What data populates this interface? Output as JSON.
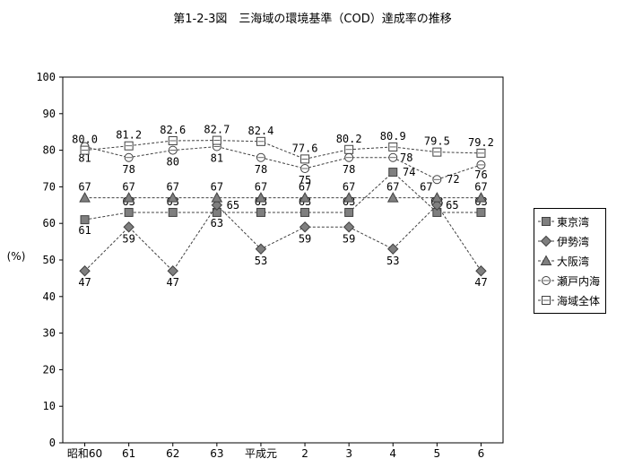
{
  "figure_title": "第1-2-3図　三海域の環境基準（COD）達成率の推移",
  "chart_data": {
    "type": "line",
    "title": "第1-2-3図　三海域の環境基準（COD）達成率の推移",
    "xlabel": "",
    "ylabel": "(%)",
    "ylim": [
      0,
      100
    ],
    "yticks": [
      0,
      10,
      20,
      30,
      40,
      50,
      60,
      70,
      80,
      90,
      100
    ],
    "categories": [
      "昭和60",
      "61",
      "62",
      "63",
      "平成元",
      "2",
      "3",
      "4",
      "5",
      "6"
    ],
    "grid": false,
    "legend_position": "right",
    "series": [
      {
        "name": "東京湾",
        "marker": "filled-square",
        "values": [
          61,
          63,
          63,
          63,
          63,
          63,
          63,
          74,
          63,
          63
        ],
        "labels": [
          "61",
          "63",
          "63",
          "63",
          "63",
          "63",
          "63",
          "74",
          "63",
          "63"
        ]
      },
      {
        "name": "伊勢湾",
        "marker": "filled-diamond",
        "values": [
          47,
          59,
          47,
          65,
          53,
          59,
          59,
          53,
          65,
          47
        ],
        "labels": [
          "47",
          "59",
          "47",
          "65",
          "53",
          "59",
          "59",
          "53",
          "65",
          "47"
        ]
      },
      {
        "name": "大阪湾",
        "marker": "filled-triangle",
        "values": [
          67,
          67,
          67,
          67,
          67,
          67,
          67,
          67,
          67,
          67
        ],
        "labels": [
          "67",
          "67",
          "67",
          "67",
          "67",
          "67",
          "67",
          "67",
          "67",
          "67"
        ]
      },
      {
        "name": "瀬戸内海",
        "marker": "open-circle",
        "values": [
          81,
          78,
          80,
          81,
          78,
          75,
          78,
          78,
          72,
          76
        ],
        "labels": [
          "81",
          "78",
          "80",
          "81",
          "78",
          "75",
          "78",
          "78",
          "72",
          "76"
        ]
      },
      {
        "name": "海域全体",
        "marker": "open-square",
        "values": [
          80.0,
          81.2,
          82.6,
          82.7,
          82.4,
          77.6,
          80.2,
          80.9,
          79.5,
          79.2
        ],
        "labels": [
          "80.0",
          "81.2",
          "82.6",
          "82.7",
          "82.4",
          "77.6",
          "80.2",
          "80.9",
          "79.5",
          "79.2"
        ]
      }
    ]
  }
}
